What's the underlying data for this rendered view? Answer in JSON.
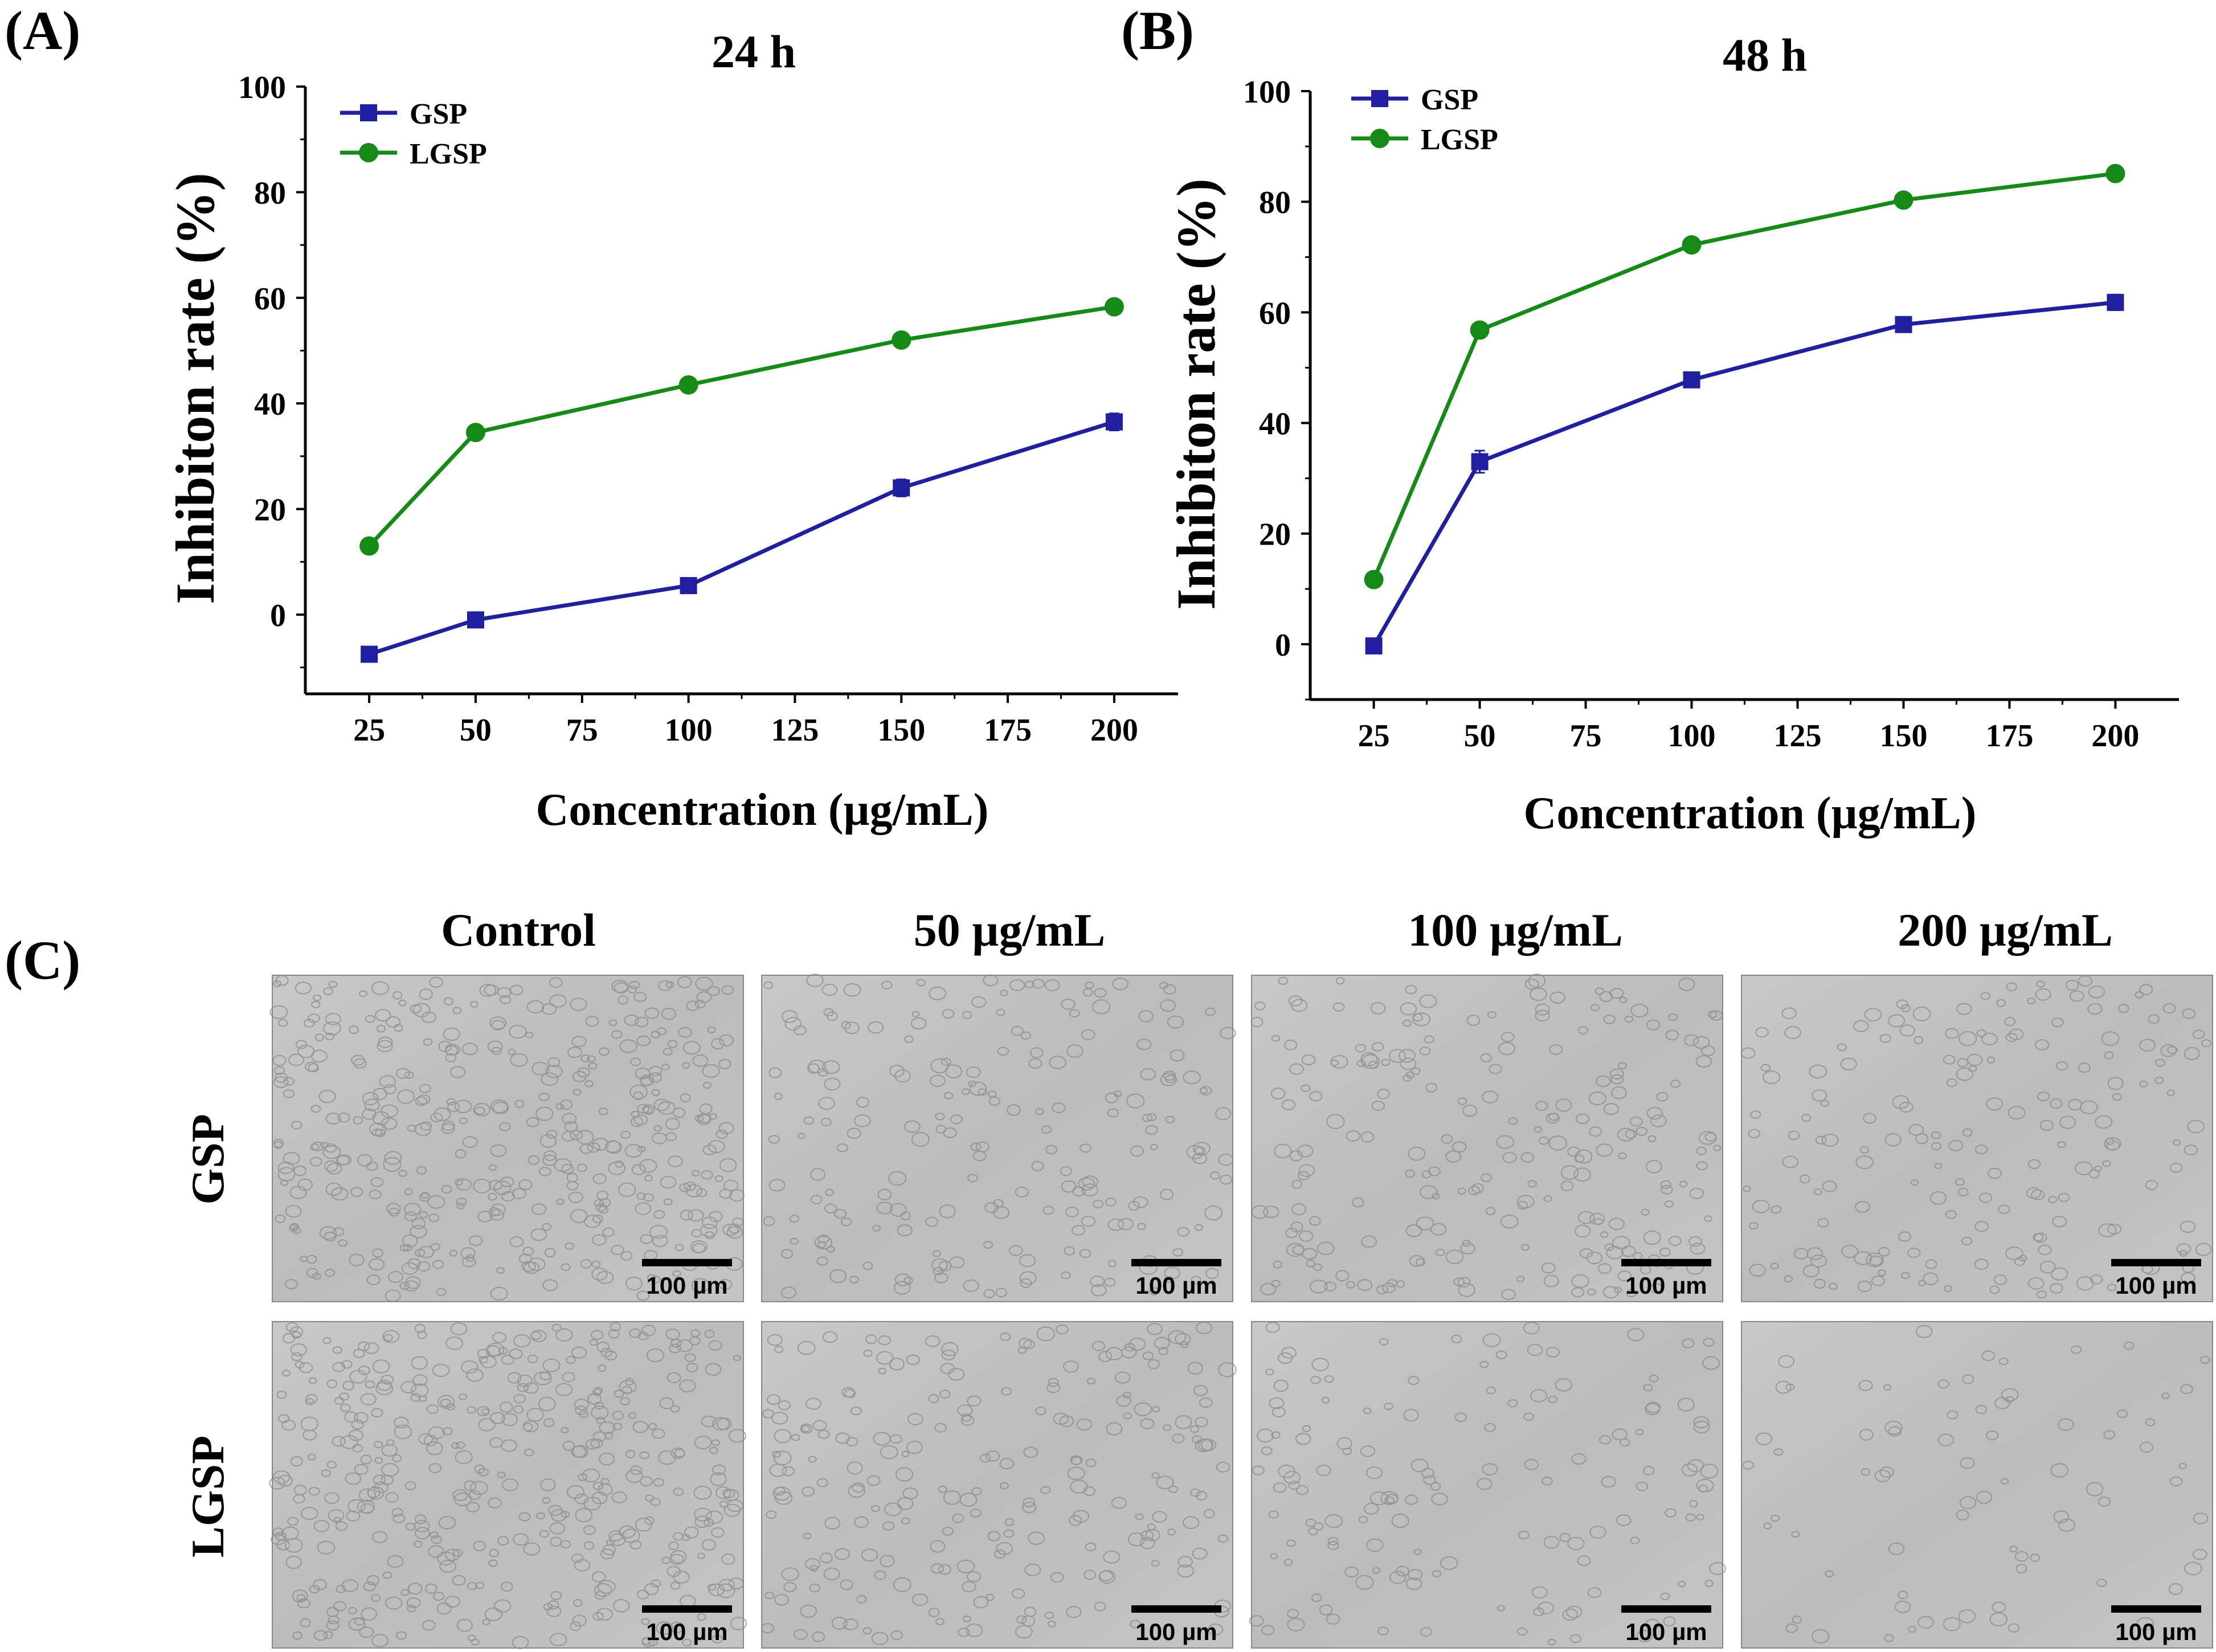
{
  "panels": {
    "a": {
      "label": "(A)"
    },
    "b": {
      "label": "(B)"
    },
    "c": {
      "label": "(C)"
    }
  },
  "chart_data": [
    {
      "type": "line",
      "panel": "A",
      "title": "24 h",
      "xlabel": "Concentration (µg/mL)",
      "ylabel": "Inhibiton rate (%)",
      "xlim": [
        10,
        215
      ],
      "ylim": [
        -15,
        100
      ],
      "xticks": [
        25,
        50,
        75,
        100,
        125,
        150,
        175,
        200
      ],
      "yticks": [
        0,
        20,
        40,
        60,
        80,
        100
      ],
      "legend_position": "top-left",
      "grid": false,
      "series": [
        {
          "name": "GSP",
          "color": "#1f1fa0",
          "marker": "square",
          "x": [
            25,
            50,
            100,
            150,
            200
          ],
          "values": [
            -7.5,
            -1,
            5.5,
            24,
            36.5
          ],
          "errors": [
            0.8,
            0.8,
            0.8,
            1.6,
            1.6
          ]
        },
        {
          "name": "LGSP",
          "color": "#168a16",
          "marker": "circle",
          "x": [
            25,
            50,
            100,
            150,
            200
          ],
          "values": [
            13,
            34.5,
            43.5,
            52,
            58.3
          ],
          "errors": [
            0.6,
            0.6,
            0.6,
            0.6,
            0.6
          ]
        }
      ]
    },
    {
      "type": "line",
      "panel": "B",
      "title": "48 h",
      "xlabel": "Concentration (µg/mL)",
      "ylabel": "Inhibiton rate (%)",
      "xlim": [
        10,
        215
      ],
      "ylim": [
        -10,
        100
      ],
      "xticks": [
        25,
        50,
        75,
        100,
        125,
        150,
        175,
        200
      ],
      "yticks": [
        0,
        20,
        40,
        60,
        80,
        100
      ],
      "legend_position": "top-left",
      "grid": false,
      "series": [
        {
          "name": "GSP",
          "color": "#1f1fa0",
          "marker": "square",
          "x": [
            25,
            50,
            100,
            150,
            200
          ],
          "values": [
            -0.3,
            33,
            47.8,
            57.8,
            61.8
          ],
          "errors": [
            0.8,
            2.0,
            0.9,
            0.9,
            1.4
          ]
        },
        {
          "name": "LGSP",
          "color": "#168a16",
          "marker": "circle",
          "x": [
            25,
            50,
            100,
            150,
            200
          ],
          "values": [
            11.7,
            56.8,
            72.2,
            80.3,
            85.1
          ],
          "errors": [
            0.6,
            0.6,
            0.6,
            0.6,
            0.6
          ]
        }
      ]
    }
  ],
  "micrographs": {
    "column_labels": [
      "Control",
      "50 µg/mL",
      "100 µg/mL",
      "200 µg/mL"
    ],
    "row_labels": [
      "GSP",
      "LGSP"
    ],
    "scale_bar_label": "100 µm",
    "density": [
      [
        1.0,
        0.5,
        0.55,
        0.45
      ],
      [
        1.0,
        0.55,
        0.35,
        0.18
      ]
    ],
    "background_color": "#bcbcbc",
    "cell_color": "#8a8a8a"
  }
}
